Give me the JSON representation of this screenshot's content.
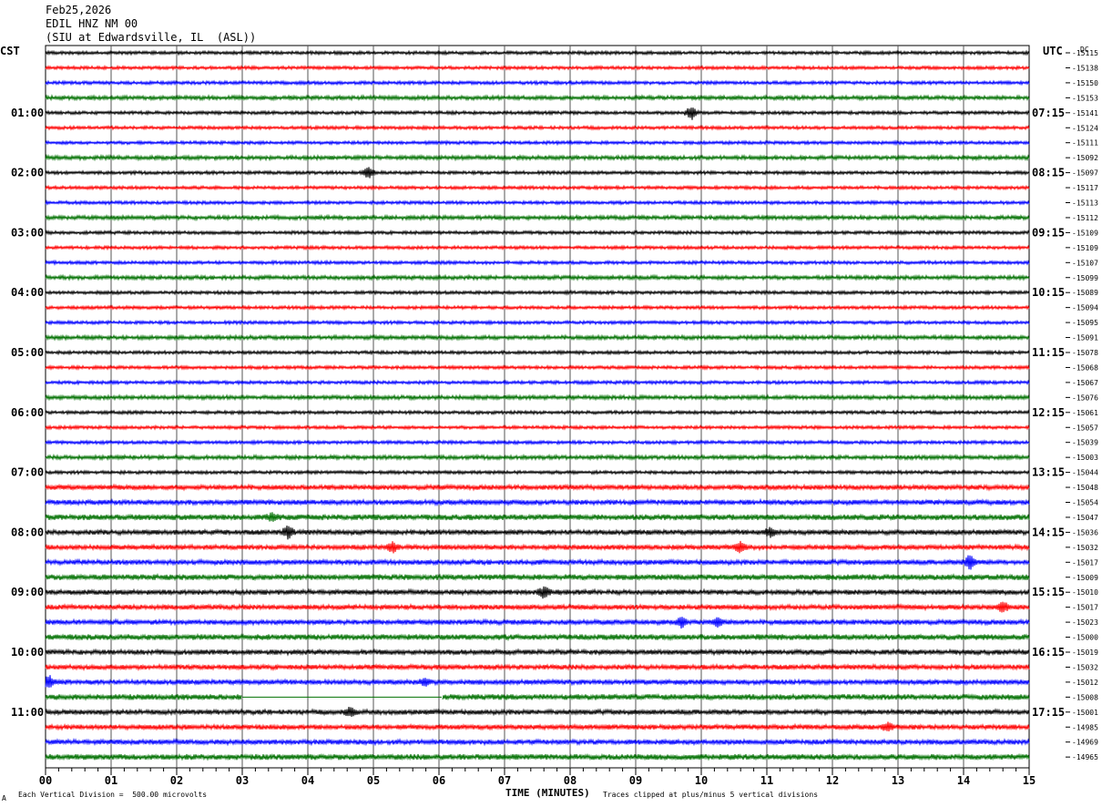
{
  "header": {
    "date": "Feb25,2026",
    "station": "EDIL HNZ NM 00",
    "location": "(SIU at Edwardsville, IL  (ASL))"
  },
  "left_axis_label": "CST",
  "right_axis_label": "UTC",
  "dc_label": "DC",
  "footer": {
    "scale_note": "Each Vertical Division =  500.00 microvolts",
    "xlabel": "TIME (MINUTES)",
    "clip_note": "Traces clipped at plus/minus 5 vertical divisions",
    "corner_mark": "A"
  },
  "colors": {
    "trace_cycle": [
      "#000000",
      "#ff0000",
      "#0000ff",
      "#007000"
    ],
    "grid": "#000000"
  },
  "chart_data": {
    "type": "line",
    "subtype": "helicorder",
    "x": {
      "label": "TIME (MINUTES)",
      "min": 0,
      "max": 15,
      "ticks": [
        "00",
        "01",
        "02",
        "03",
        "04",
        "05",
        "06",
        "07",
        "08",
        "09",
        "10",
        "11",
        "12",
        "13",
        "14",
        "15"
      ]
    },
    "left_time_labels": [
      "01:00",
      "02:00",
      "03:00",
      "04:00",
      "05:00",
      "06:00",
      "07:00",
      "08:00",
      "09:00",
      "10:00",
      "11:00"
    ],
    "right_time_labels": [
      "07:15",
      "08:15",
      "09:15",
      "10:15",
      "11:15",
      "12:15",
      "13:15",
      "14:15",
      "15:15",
      "16:15",
      "17:15"
    ],
    "dc_offsets": [
      -15115,
      -15138,
      -15150,
      -15153,
      -15141,
      -15124,
      -15111,
      -15092,
      -15097,
      -15117,
      -15113,
      -15112,
      -15109,
      -15109,
      -15107,
      -15099,
      -15089,
      -15094,
      -15095,
      -15091,
      -15078,
      -15068,
      -15067,
      -15076,
      -15061,
      -15057,
      -15039,
      -15003,
      -15044,
      -15048,
      -15054,
      -15047,
      -15036,
      -15032,
      -15017,
      -15009,
      -15010,
      -15017,
      -15023,
      -15000,
      -15019,
      -15032,
      -15012,
      -15008,
      -15001,
      -14985,
      -14969,
      -14965
    ],
    "events": [
      {
        "line": 4,
        "minute": 9.85,
        "amp": 7
      },
      {
        "line": 8,
        "minute": 4.92,
        "amp": 6
      },
      {
        "line": 31,
        "minute": 3.45,
        "amp": 4
      },
      {
        "line": 32,
        "minute": 3.7,
        "amp": 6
      },
      {
        "line": 32,
        "minute": 11.05,
        "amp": 5
      },
      {
        "line": 33,
        "minute": 5.3,
        "amp": 5
      },
      {
        "line": 33,
        "minute": 10.6,
        "amp": 5
      },
      {
        "line": 34,
        "minute": 14.1,
        "amp": 8
      },
      {
        "line": 36,
        "minute": 7.6,
        "amp": 6
      },
      {
        "line": 37,
        "minute": 14.6,
        "amp": 5
      },
      {
        "line": 38,
        "minute": 9.7,
        "amp": 5
      },
      {
        "line": 38,
        "minute": 10.25,
        "amp": 5
      },
      {
        "line": 42,
        "minute": 0.05,
        "amp": 7
      },
      {
        "line": 42,
        "minute": 5.8,
        "amp": 4
      },
      {
        "line": 44,
        "minute": 4.65,
        "amp": 5
      },
      {
        "line": 45,
        "minute": 12.85,
        "amp": 4
      }
    ],
    "gap": {
      "line": 43,
      "from_minute": 3.0,
      "to_minute": 6.05
    }
  }
}
